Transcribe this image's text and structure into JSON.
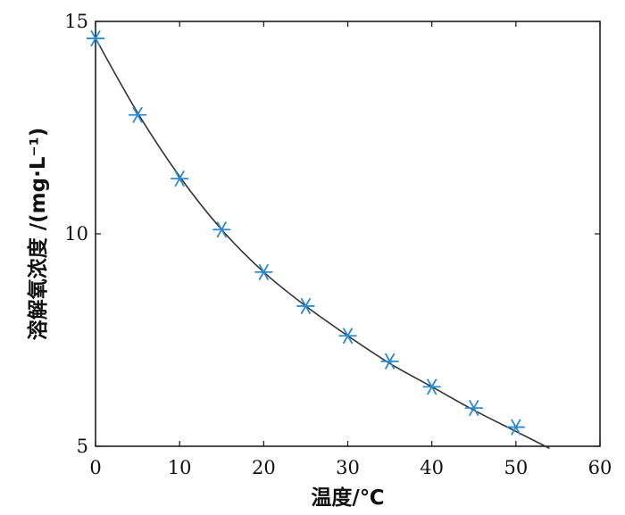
{
  "chart_data": {
    "type": "scatter",
    "title": "",
    "xlabel": "温度/℃",
    "ylabel": "溶解氧浓度 /(mg·L⁻¹)",
    "xlim": [
      0,
      60
    ],
    "ylim": [
      5,
      15
    ],
    "x_ticks": [
      "0",
      "10",
      "20",
      "30",
      "40",
      "50",
      "60"
    ],
    "y_ticks": [
      "5",
      "10",
      "15"
    ],
    "grid": false,
    "legend": "none",
    "series": [
      {
        "kind": "scatter",
        "marker": "asterisk",
        "color": "#2b8ad1",
        "x": [
          0,
          5,
          10,
          15,
          20,
          25,
          30,
          35,
          40,
          45,
          50
        ],
        "y": [
          14.6,
          12.8,
          11.3,
          10.1,
          9.1,
          8.3,
          7.6,
          7.0,
          6.4,
          5.9,
          5.45
        ]
      },
      {
        "kind": "line",
        "color": "#333333",
        "x": [
          0,
          5,
          10,
          15,
          20,
          25,
          30,
          35,
          40,
          45,
          50,
          54
        ],
        "y": [
          14.6,
          12.85,
          11.35,
          10.1,
          9.1,
          8.3,
          7.6,
          6.95,
          6.4,
          5.85,
          5.35,
          4.95
        ]
      }
    ]
  }
}
